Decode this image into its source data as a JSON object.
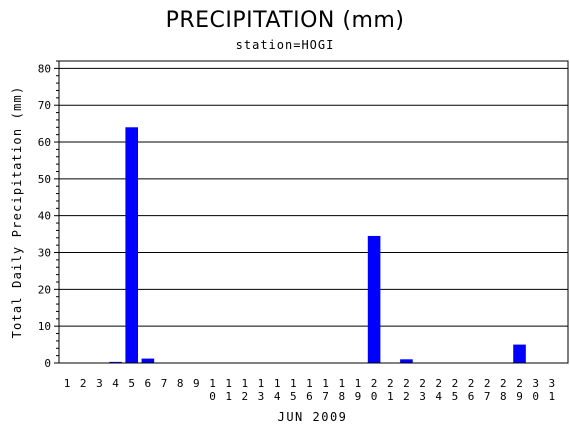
{
  "chart_data": {
    "type": "bar",
    "title": "PRECIPITATION (mm)",
    "subtitle": "station=HOGI",
    "ylabel": "Total Daily Precipitation (mm)",
    "xlabel": "JUN 2009",
    "ylim": [
      0,
      82
    ],
    "yticks": [
      0,
      10,
      20,
      30,
      40,
      50,
      60,
      70,
      80
    ],
    "grid": true,
    "bar_color": "#0000ff",
    "categories": [
      "1",
      "2",
      "3",
      "4",
      "5",
      "6",
      "7",
      "8",
      "9",
      "10",
      "11",
      "12",
      "13",
      "14",
      "15",
      "16",
      "17",
      "18",
      "19",
      "20",
      "21",
      "22",
      "23",
      "24",
      "25",
      "26",
      "27",
      "28",
      "29",
      "30",
      "31"
    ],
    "values": [
      0,
      0,
      0,
      0.3,
      64,
      1.2,
      0,
      0,
      0,
      0,
      0,
      0,
      0,
      0,
      0,
      0,
      0,
      0,
      0,
      34.5,
      0,
      1.0,
      0,
      0,
      0,
      0,
      0,
      0,
      5.0,
      0,
      0
    ]
  }
}
